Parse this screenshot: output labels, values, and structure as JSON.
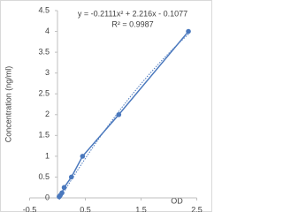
{
  "chart_data": {
    "type": "scatter",
    "x_label": "OD",
    "y_label": "Concentration (ng/ml)",
    "annotations": [
      "y = -0.2111x² + 2.216x - 0.1077",
      "R² = 0.9987"
    ],
    "series": [
      {
        "name": "Concentration",
        "color": "#4a78bd",
        "x": [
          0.03,
          0.05,
          0.08,
          0.12,
          0.25,
          0.45,
          1.1,
          2.35
        ],
        "values": [
          0.03,
          0.06,
          0.12,
          0.25,
          0.5,
          1,
          2,
          4
        ]
      }
    ],
    "trendline": [
      -0.2111,
      2.216,
      -0.1077
    ],
    "xlim": [
      -0.5,
      2.5
    ],
    "xticks": [
      -0.5,
      0.5,
      1.5,
      2.5
    ],
    "ylim": [
      0,
      4.5
    ],
    "yticks": [
      0,
      0.5,
      1,
      1.5,
      2,
      2.5,
      3,
      3.5,
      4,
      4.5
    ]
  }
}
